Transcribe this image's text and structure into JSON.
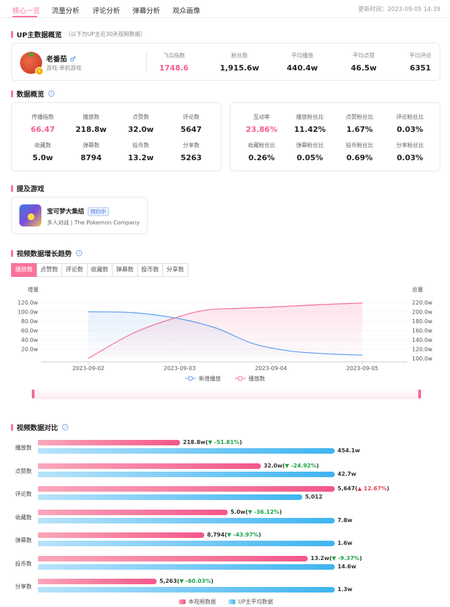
{
  "tabs": [
    "核心一览",
    "流量分析",
    "评论分析",
    "弹幕分析",
    "观众画像"
  ],
  "update_time": "更新时间：2023-09-05 14:39",
  "up_section": {
    "title": "UP主数据概览",
    "subtitle": "（以下为UP主近30天视频数据）"
  },
  "up": {
    "name": "老番茄",
    "category": "游戏-单机游戏",
    "stats": [
      {
        "label": "飞瓜指数",
        "value": "1748.6"
      },
      {
        "label": "粉丝数",
        "value": "1,915.6w"
      },
      {
        "label": "平均播放",
        "value": "440.4w"
      },
      {
        "label": "平均点赞",
        "value": "46.5w"
      },
      {
        "label": "平均评论",
        "value": "6351"
      }
    ]
  },
  "overview": {
    "title": "数据概览",
    "left": [
      {
        "label": "传播指数",
        "value": "66.47"
      },
      {
        "label": "播放数",
        "value": "218.8w"
      },
      {
        "label": "点赞数",
        "value": "32.0w"
      },
      {
        "label": "评论数",
        "value": "5647"
      },
      {
        "label": "收藏数",
        "value": "5.0w"
      },
      {
        "label": "弹幕数",
        "value": "8794"
      },
      {
        "label": "投币数",
        "value": "13.2w"
      },
      {
        "label": "分享数",
        "value": "5263"
      }
    ],
    "right": [
      {
        "label": "互动率",
        "value": "23.86%"
      },
      {
        "label": "播放粉丝比",
        "value": "11.42%"
      },
      {
        "label": "点赞粉丝比",
        "value": "1.67%"
      },
      {
        "label": "评论粉丝比",
        "value": "0.03%"
      },
      {
        "label": "收藏粉丝比",
        "value": "0.26%"
      },
      {
        "label": "弹幕粉丝比",
        "value": "0.05%"
      },
      {
        "label": "投币粉丝比",
        "value": "0.69%"
      },
      {
        "label": "分享粉丝比",
        "value": "0.03%"
      }
    ]
  },
  "games": {
    "title": "提及游戏",
    "name": "宝可梦大集结",
    "tag": "预约中",
    "sub": "多人对战 | The Pokemon Company"
  },
  "trend": {
    "title": "视频数据增长趋势",
    "tabs": [
      "播放数",
      "点赞数",
      "评论数",
      "收藏数",
      "弹幕数",
      "投币数",
      "分享数"
    ],
    "left_axis_title": "增量",
    "right_axis_title": "总量",
    "chart_data": {
      "type": "line",
      "x": [
        "2023-09-02",
        "2023-09-03",
        "2023-09-04",
        "2023-09-05"
      ],
      "left_ticks": [
        "120.0w",
        "100.0w",
        "80.0w",
        "60.0w",
        "40.0w",
        "20.0w"
      ],
      "right_ticks": [
        "220.0w",
        "200.0w",
        "180.0w",
        "160.0w",
        "140.0w",
        "120.0w",
        "100.0w"
      ],
      "ylim_left": [
        0,
        120
      ],
      "ylim_right": [
        100,
        220
      ],
      "series": [
        {
          "name": "新增播放",
          "axis": "left",
          "color": "#5b9bf0",
          "points": [
            [
              0,
              100
            ],
            [
              0.5,
              98
            ],
            [
              1,
              85
            ],
            [
              1.4,
              65
            ],
            [
              1.8,
              32
            ],
            [
              2.2,
              16
            ],
            [
              2.6,
              10
            ],
            [
              3,
              7
            ]
          ]
        },
        {
          "name": "播放数",
          "axis": "right",
          "color": "#f46a93",
          "points": [
            [
              0,
              100
            ],
            [
              0.5,
              155
            ],
            [
              1,
              190
            ],
            [
              1.3,
              204
            ],
            [
              1.6,
              207
            ],
            [
              2,
              210
            ],
            [
              2.5,
              215
            ],
            [
              3,
              218.8
            ]
          ]
        }
      ]
    }
  },
  "compare": {
    "title": "视频数据对比",
    "legend_this": "本视频数据",
    "legend_avg": "UP主平均数据",
    "rows": [
      {
        "label": "播放数",
        "this": "218.8w",
        "change": "-51.81%",
        "dir": "down",
        "avg": "454.1w",
        "this_frac": 0.48,
        "avg_frac": 1.0
      },
      {
        "label": "点赞数",
        "this": "32.0w",
        "change": "-24.92%",
        "dir": "down",
        "avg": "42.7w",
        "this_frac": 0.75,
        "avg_frac": 1.0
      },
      {
        "label": "评论数",
        "this": "5,647",
        "change": "12.67%",
        "dir": "up",
        "avg": "5,012",
        "this_frac": 1.0,
        "avg_frac": 0.89
      },
      {
        "label": "收藏数",
        "this": "5.0w",
        "change": "-36.12%",
        "dir": "down",
        "avg": "7.8w",
        "this_frac": 0.64,
        "avg_frac": 1.0
      },
      {
        "label": "弹幕数",
        "this": "8,794",
        "change": "-43.97%",
        "dir": "down",
        "avg": "1.6w",
        "this_frac": 0.56,
        "avg_frac": 1.0
      },
      {
        "label": "投币数",
        "this": "13.2w",
        "change": "-9.37%",
        "dir": "down",
        "avg": "14.6w",
        "this_frac": 0.91,
        "avg_frac": 1.0
      },
      {
        "label": "分享数",
        "this": "5,263",
        "change": "-60.03%",
        "dir": "down",
        "avg": "1.3w",
        "this_frac": 0.4,
        "avg_frac": 1.0
      }
    ]
  },
  "colors": {
    "accent": "#fb7299",
    "pink": "#f25d8e",
    "blue": "#3eb4f0",
    "down": "#1fa34a",
    "up": "#e5484d"
  }
}
